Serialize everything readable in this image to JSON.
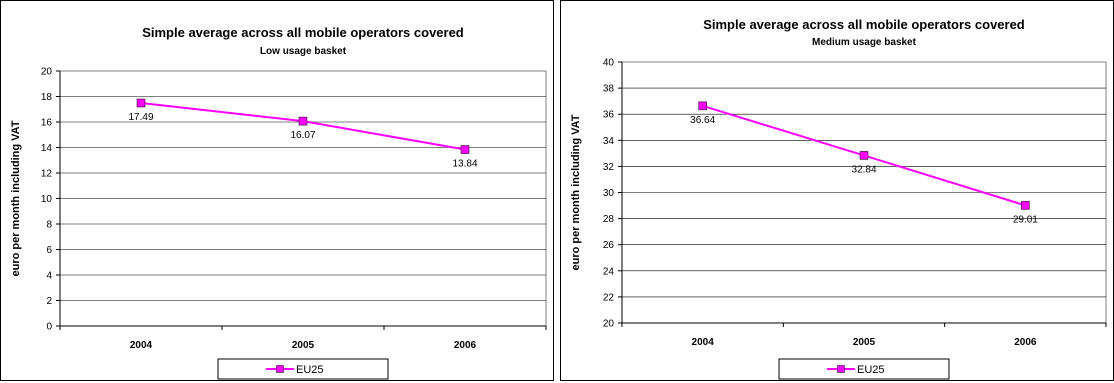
{
  "chart_data": [
    {
      "type": "line",
      "title": "Simple average across all mobile operators covered",
      "subtitle": "Low usage basket",
      "ylabel": "euro per month including VAT",
      "xlabel": "",
      "categories": [
        "2004",
        "2005",
        "2006"
      ],
      "ylim": [
        0,
        20
      ],
      "yticks": [
        0,
        2,
        4,
        6,
        8,
        10,
        12,
        14,
        16,
        18,
        20
      ],
      "grid": true,
      "legend_position": "bottom",
      "series": [
        {
          "name": "EU25",
          "values": [
            17.49,
            16.07,
            13.84
          ],
          "labels": [
            "17.49",
            "16.07",
            "13.84"
          ],
          "color": "#ff00ff"
        }
      ]
    },
    {
      "type": "line",
      "title": "Simple average across all mobile operators covered",
      "subtitle": "Medium usage basket",
      "ylabel": "euro per month including VAT",
      "xlabel": "",
      "categories": [
        "2004",
        "2005",
        "2006"
      ],
      "ylim": [
        20,
        40
      ],
      "yticks": [
        20,
        22,
        24,
        26,
        28,
        30,
        32,
        34,
        36,
        38,
        40
      ],
      "grid": true,
      "legend_position": "bottom",
      "series": [
        {
          "name": "EU25",
          "values": [
            36.64,
            32.84,
            29.01
          ],
          "labels": [
            "36.64",
            "32.84",
            "29.01"
          ],
          "color": "#ff00ff"
        }
      ]
    }
  ]
}
